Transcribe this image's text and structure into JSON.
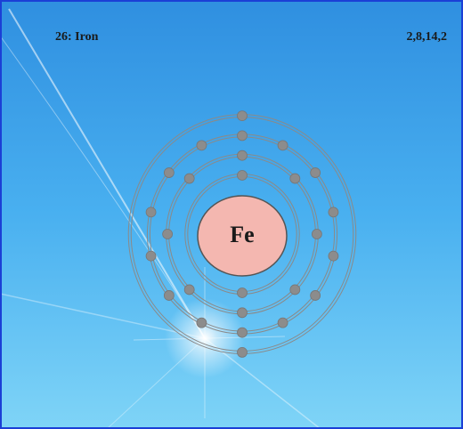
{
  "header": {
    "title": "26: Iron",
    "configuration": "2,8,14,2"
  },
  "nucleus": {
    "label": "Fe"
  }
}
